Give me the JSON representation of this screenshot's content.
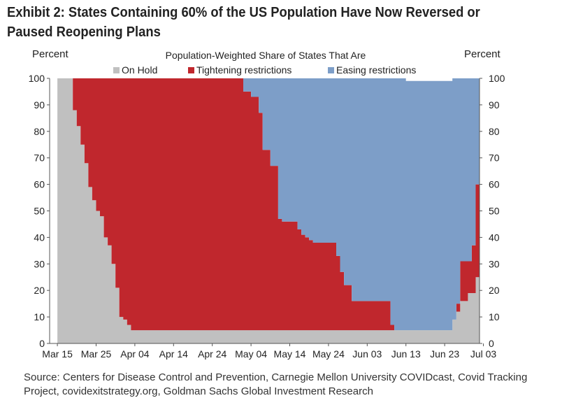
{
  "title": "Exhibit 2: States Containing 60% of the US Population Have Now Reversed or Paused Reopening Plans",
  "source": "Source: Centers for Disease Control and Prevention, Carnegie Mellon University COVIDcast, Covid Tracking Project, covidexitstrategy.org, Goldman Sachs Global Investment Research",
  "colors": {
    "on_hold": "#c0c0c0",
    "tightening": "#c0272d",
    "easing": "#7d9ec8"
  },
  "chart_data": {
    "type": "area",
    "stacked": true,
    "title": "Population-Weighted Share of States That Are",
    "ylabel_left": "Percent",
    "ylabel_right": "Percent",
    "ylim": [
      0,
      100
    ],
    "yticks": [
      "0",
      "10",
      "20",
      "30",
      "40",
      "50",
      "60",
      "70",
      "80",
      "90",
      "100"
    ],
    "xticks": [
      "Mar 15",
      "Mar 25",
      "Apr 04",
      "Apr 14",
      "Apr 24",
      "May 04",
      "May 14",
      "May 24",
      "Jun 03",
      "Jun 13",
      "Jun 23",
      "Jul 03"
    ],
    "x_day_range": [
      -2,
      109
    ],
    "legend": [
      "On Hold",
      "Tightening restrictions",
      "Easing restrictions"
    ],
    "days": [
      0,
      2,
      3,
      4,
      5,
      6,
      7,
      8,
      9,
      10,
      11,
      12,
      13,
      14,
      15,
      16,
      17,
      18,
      19,
      20,
      21,
      22,
      23,
      25,
      30,
      35,
      40,
      45,
      48,
      50,
      52,
      53,
      55,
      57,
      58,
      59,
      60,
      61,
      62,
      63,
      64,
      65,
      66,
      67,
      68,
      69,
      70,
      71,
      72,
      73,
      74,
      76,
      78,
      80,
      82,
      84,
      86,
      87,
      88,
      89,
      90,
      91,
      92,
      93,
      94,
      95,
      96,
      97,
      98,
      99,
      100,
      101,
      102,
      103,
      104,
      105,
      106,
      107,
      108
    ],
    "series": [
      {
        "name": "On Hold",
        "values": [
          100,
          100,
          100,
          88,
          82,
          75,
          68,
          59,
          54,
          50,
          48,
          40,
          37,
          30,
          21,
          10,
          9,
          7,
          5,
          5,
          5,
          5,
          5,
          5,
          5,
          5,
          5,
          5,
          5,
          5,
          5,
          5,
          5,
          5,
          5,
          5,
          5,
          5,
          5,
          5,
          5,
          5,
          5,
          5,
          5,
          5,
          5,
          5,
          5,
          5,
          5,
          5,
          5,
          5,
          5,
          5,
          5,
          5,
          5,
          5,
          5,
          5,
          5,
          5,
          5,
          5,
          5,
          5,
          5,
          5,
          5,
          5,
          9,
          12,
          16,
          16,
          19,
          19,
          25
        ]
      },
      {
        "name": "Tightening restrictions",
        "values": [
          0,
          0,
          0,
          12,
          18,
          25,
          32,
          41,
          46,
          50,
          52,
          60,
          63,
          70,
          79,
          90,
          91,
          93,
          95,
          95,
          95,
          95,
          95,
          95,
          95,
          95,
          95,
          95,
          90,
          88,
          82,
          68,
          62,
          42,
          41,
          41,
          41,
          41,
          38,
          36,
          35,
          34,
          33,
          33,
          33,
          33,
          33,
          33,
          28,
          22,
          17,
          11,
          11,
          11,
          11,
          11,
          2,
          0,
          0,
          0,
          0,
          0,
          0,
          0,
          0,
          0,
          0,
          0,
          0,
          0,
          0,
          0,
          0,
          3,
          15,
          15,
          12,
          18,
          35
        ]
      },
      {
        "name": "Easing restrictions",
        "values": [
          0,
          0,
          0,
          0,
          0,
          0,
          0,
          0,
          0,
          0,
          0,
          0,
          0,
          0,
          0,
          0,
          0,
          0,
          0,
          0,
          0,
          0,
          0,
          0,
          0,
          0,
          0,
          0,
          5,
          7,
          13,
          27,
          33,
          53,
          54,
          54,
          54,
          54,
          57,
          59,
          60,
          61,
          62,
          62,
          62,
          62,
          62,
          62,
          67,
          73,
          78,
          84,
          84,
          84,
          84,
          84,
          93,
          95,
          95,
          95,
          94,
          94,
          94,
          94,
          94,
          94,
          94,
          94,
          94,
          94,
          94,
          94,
          91,
          85,
          69,
          69,
          69,
          63,
          40
        ]
      }
    ]
  }
}
